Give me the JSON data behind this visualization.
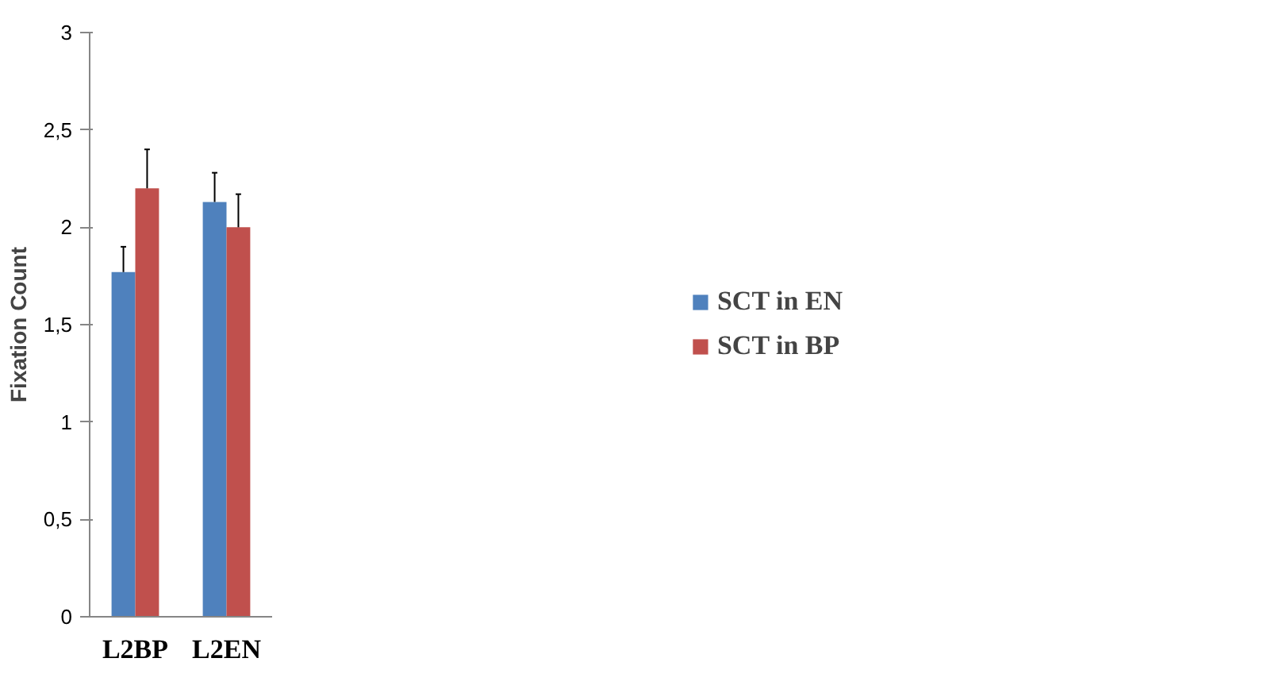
{
  "chart_data": {
    "type": "bar",
    "ylabel": "Fixation Count",
    "categories": [
      "L2BP",
      "L2EN"
    ],
    "series": [
      {
        "name": "SCT in EN",
        "color": "#4f81bd",
        "values": [
          1.77,
          2.13
        ],
        "errors": [
          [
            1.77,
            1.9
          ],
          [
            2.13,
            2.28
          ]
        ]
      },
      {
        "name": "SCT in BP",
        "color": "#c0504d",
        "values": [
          2.2,
          2.0
        ],
        "errors": [
          [
            2.2,
            2.4
          ],
          [
            2.0,
            2.17
          ]
        ]
      }
    ],
    "ylim": [
      0,
      3
    ],
    "yticks": [
      0,
      {
        "value": 0.5,
        "label": "0,5"
      },
      1,
      {
        "value": 1.5,
        "label": "1,5"
      },
      2,
      {
        "value": 2.5,
        "label": "2,5"
      },
      3
    ],
    "grid": false,
    "legend": "right"
  }
}
